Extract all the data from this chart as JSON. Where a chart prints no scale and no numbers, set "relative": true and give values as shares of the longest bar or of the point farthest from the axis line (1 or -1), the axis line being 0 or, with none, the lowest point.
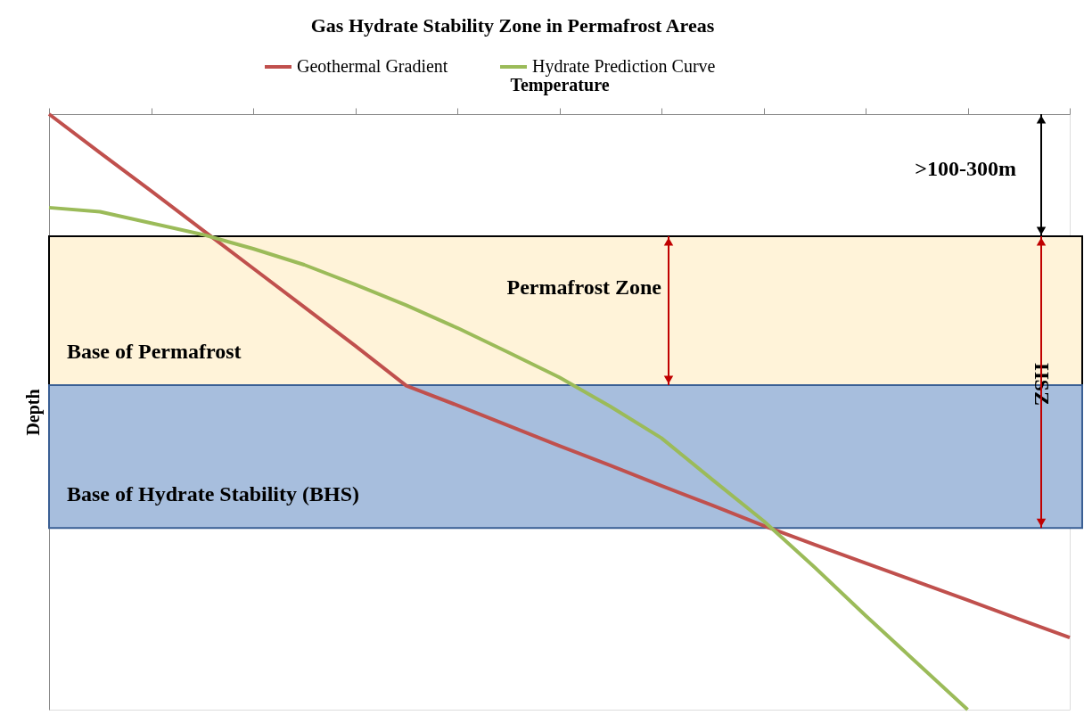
{
  "chart_data": {
    "type": "line",
    "title": "Gas Hydrate Stability Zone in Permafrost Areas",
    "xlabel": "Temperature",
    "ylabel": "Depth",
    "relative": true,
    "categories": [
      null,
      null,
      null,
      null,
      null,
      null,
      null,
      null,
      null,
      null,
      null,
      null,
      null,
      null,
      null,
      null,
      null,
      null,
      null,
      null,
      null
    ],
    "series": [
      {
        "name": "Geothermal Gradient",
        "color": "#c0504d",
        "values": [
          0,
          -0.065,
          -0.129,
          -0.194,
          -0.259,
          -0.324,
          -0.389,
          -0.456,
          -0.489,
          -0.523,
          -0.557,
          -0.59,
          -0.624,
          -0.657,
          -0.691,
          -0.723,
          -0.754,
          -0.785,
          -0.816,
          -0.848,
          -0.879
        ]
      },
      {
        "name": "Hydrate Prediction Curve",
        "color": "#9bbb59",
        "values": [
          -0.157,
          -0.164,
          -0.183,
          -0.202,
          -0.226,
          -0.253,
          -0.286,
          -0.321,
          -0.359,
          -0.4,
          -0.442,
          -0.491,
          -0.544,
          -0.614,
          -0.683,
          -0.761,
          -0.842,
          -0.921,
          -1.0,
          null,
          null
        ]
      }
    ],
    "bands": [
      {
        "axis": "y",
        "from": -0.205,
        "to": -0.455,
        "label": "Base of Permafrost",
        "color": "#fff3d9"
      },
      {
        "axis": "y",
        "from": -0.455,
        "to": -0.695,
        "label": "Base of Hydrate Stability (BHS)",
        "color": "#a7bedd"
      }
    ],
    "annotations": [
      ">100-300m",
      "Permafrost Zone",
      "HSZ"
    ],
    "legend": "top",
    "grid": false,
    "line_style": "solid"
  }
}
